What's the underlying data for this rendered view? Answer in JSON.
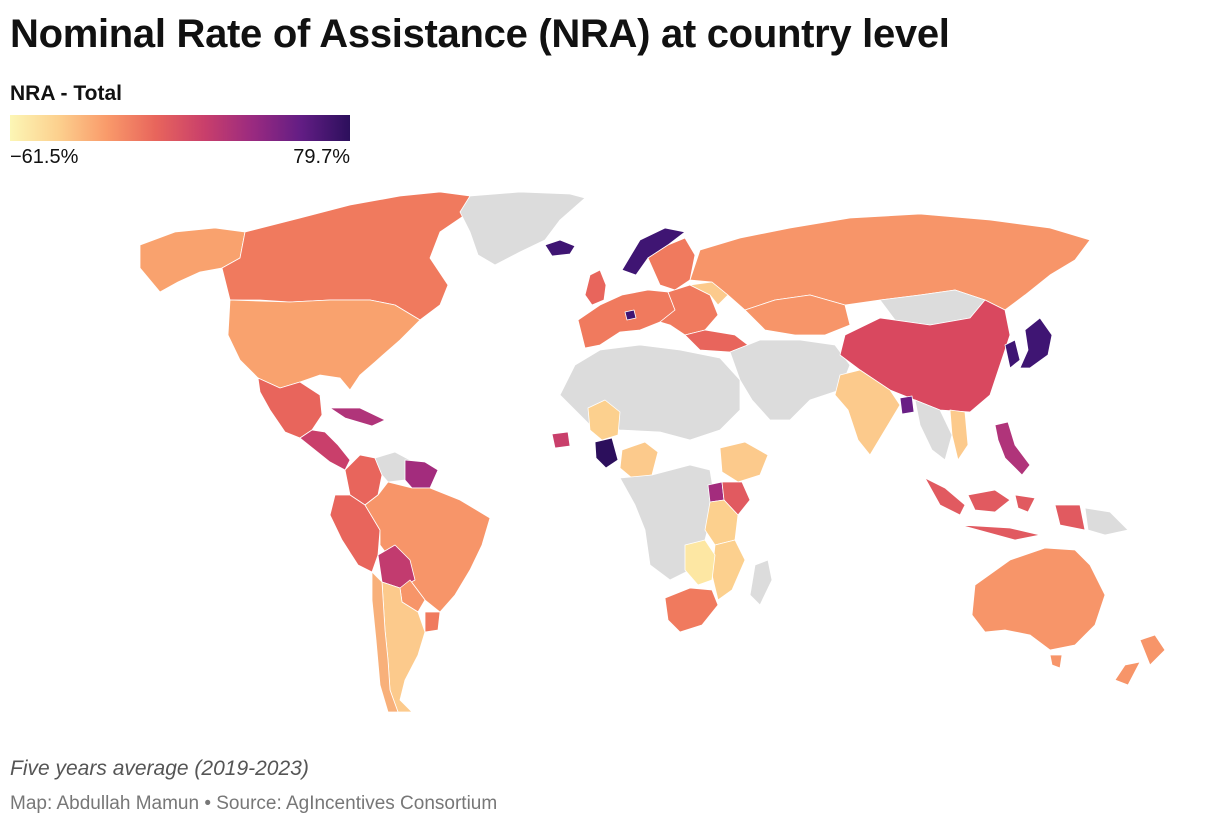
{
  "title": "Nominal Rate of Assistance (NRA) at country level",
  "legend": {
    "title": "NRA - Total",
    "min_label": "−61.5%",
    "max_label": "79.7%",
    "min_value": -61.5,
    "max_value": 79.7,
    "gradient": [
      "#fcf6b5",
      "#fcd08e",
      "#f99a6a",
      "#e8655c",
      "#c93f6b",
      "#9a2a80",
      "#621d84",
      "#2c0f5c"
    ],
    "no_data_color": "#dcdcdc"
  },
  "map": {
    "fills": {
      "canada": "#f07a5e",
      "usa": "#f9a26e",
      "alaska": "#f9a26e",
      "greenland": "#dcdcdc",
      "iceland": "#3f1573",
      "mexico": "#e8655c",
      "central_america": "#c93f6b",
      "caribbean": "#b0347a",
      "colombia": "#e8655c",
      "venezuela": "#dcdcdc",
      "guianas": "#a32c7d",
      "brazil": "#f79569",
      "peru": "#e8655c",
      "bolivia": "#c23b6f",
      "paraguay": "#f79569",
      "argentina": "#fcca8c",
      "chile": "#f8b07a",
      "uruguay": "#f07a5e",
      "uk": "#e8655c",
      "norway": "#3f1573",
      "sweden_finland": "#f07a5e",
      "western_europe": "#f07a5e",
      "switzerland": "#3f1573",
      "ukraine": "#fcca8c",
      "eastern_europe": "#f07a5e",
      "russia": "#f79569",
      "kazakhstan": "#f79569",
      "turkey": "#e8655c",
      "north_africa": "#dcdcdc",
      "mali": "#fcd08e",
      "senegal": "#c93f6b",
      "burkina_ghana": "#2c0f5c",
      "nigeria": "#fcca8c",
      "ethiopia": "#fcca8c",
      "kenya": "#e15a60",
      "uganda": "#a32c7d",
      "tanzania": "#fcd08e",
      "mozambique_malawi": "#fcd08e",
      "zambia_zimbabwe": "#fde7a3",
      "south_africa": "#f07a5e",
      "central_africa": "#dcdcdc",
      "madagascar": "#dcdcdc",
      "middle_east": "#dcdcdc",
      "india": "#fcca8c",
      "bangladesh": "#6a1f85",
      "china": "#d9485f",
      "mongolia": "#dcdcdc",
      "korea_japan": "#3f1573",
      "vietnam": "#fcca8c",
      "mainland_sea": "#dcdcdc",
      "philippines": "#b0347a",
      "indonesia": "#e15a60",
      "png": "#dcdcdc",
      "australia": "#f79569",
      "new_zealand": "#f79569"
    }
  },
  "note": "Five years average (2019-2023)",
  "source": "Map: Abdullah Mamun • Source: AgIncentives Consortium"
}
